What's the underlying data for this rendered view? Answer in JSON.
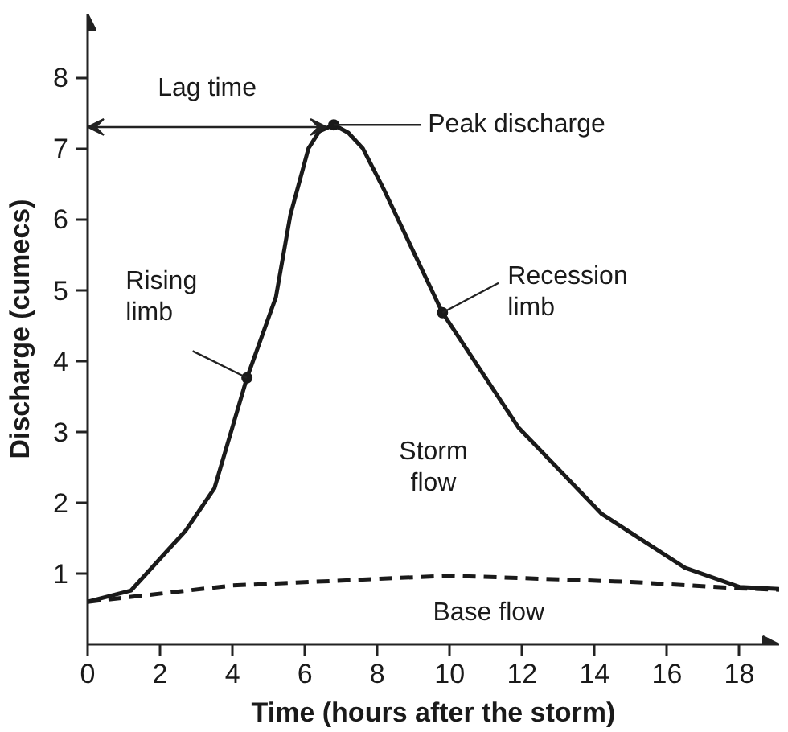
{
  "chart_data": {
    "type": "line",
    "xlabel": "Time (hours after the storm)",
    "ylabel": "Discharge (cumecs)",
    "xlim": [
      0,
      19.1
    ],
    "ylim": [
      0,
      8.9
    ],
    "xticks": [
      0,
      2,
      4,
      6,
      8,
      10,
      12,
      14,
      16,
      18
    ],
    "yticks": [
      1,
      2,
      3,
      4,
      5,
      6,
      7,
      8
    ],
    "grid": false,
    "marker": "none",
    "series": [
      {
        "color": "#1a1a1a",
        "line_style": "solid",
        "x": [
          0,
          1.2,
          2.7,
          3.5,
          4.4,
          5.2,
          5.6,
          6.1,
          6.4,
          6.8,
          7.2,
          7.6,
          8.2,
          9.8,
          11.9,
          14.2,
          16.5,
          18.0,
          19.1
        ],
        "values": [
          0.6,
          0.76,
          1.6,
          2.2,
          3.76,
          4.9,
          6.06,
          7.0,
          7.24,
          7.33,
          7.22,
          7.0,
          6.4,
          4.68,
          3.06,
          1.84,
          1.08,
          0.81,
          0.78
        ]
      },
      {
        "color": "#1a1a1a",
        "line_style": "dashed",
        "x": [
          0,
          4,
          10,
          15,
          18,
          19.1
        ],
        "values": [
          0.6,
          0.83,
          0.97,
          0.88,
          0.79,
          0.77
        ]
      }
    ],
    "annotations": [
      {
        "text": "Lag time",
        "x": 6.6,
        "y": 7.3
      },
      "Peak discharge",
      {
        "text": "Rising limb",
        "x": 4.4,
        "y": 3.76
      },
      {
        "text": "Recession limb",
        "x": 9.8,
        "y": 4.68
      },
      "Storm flow",
      "Base flow"
    ]
  }
}
